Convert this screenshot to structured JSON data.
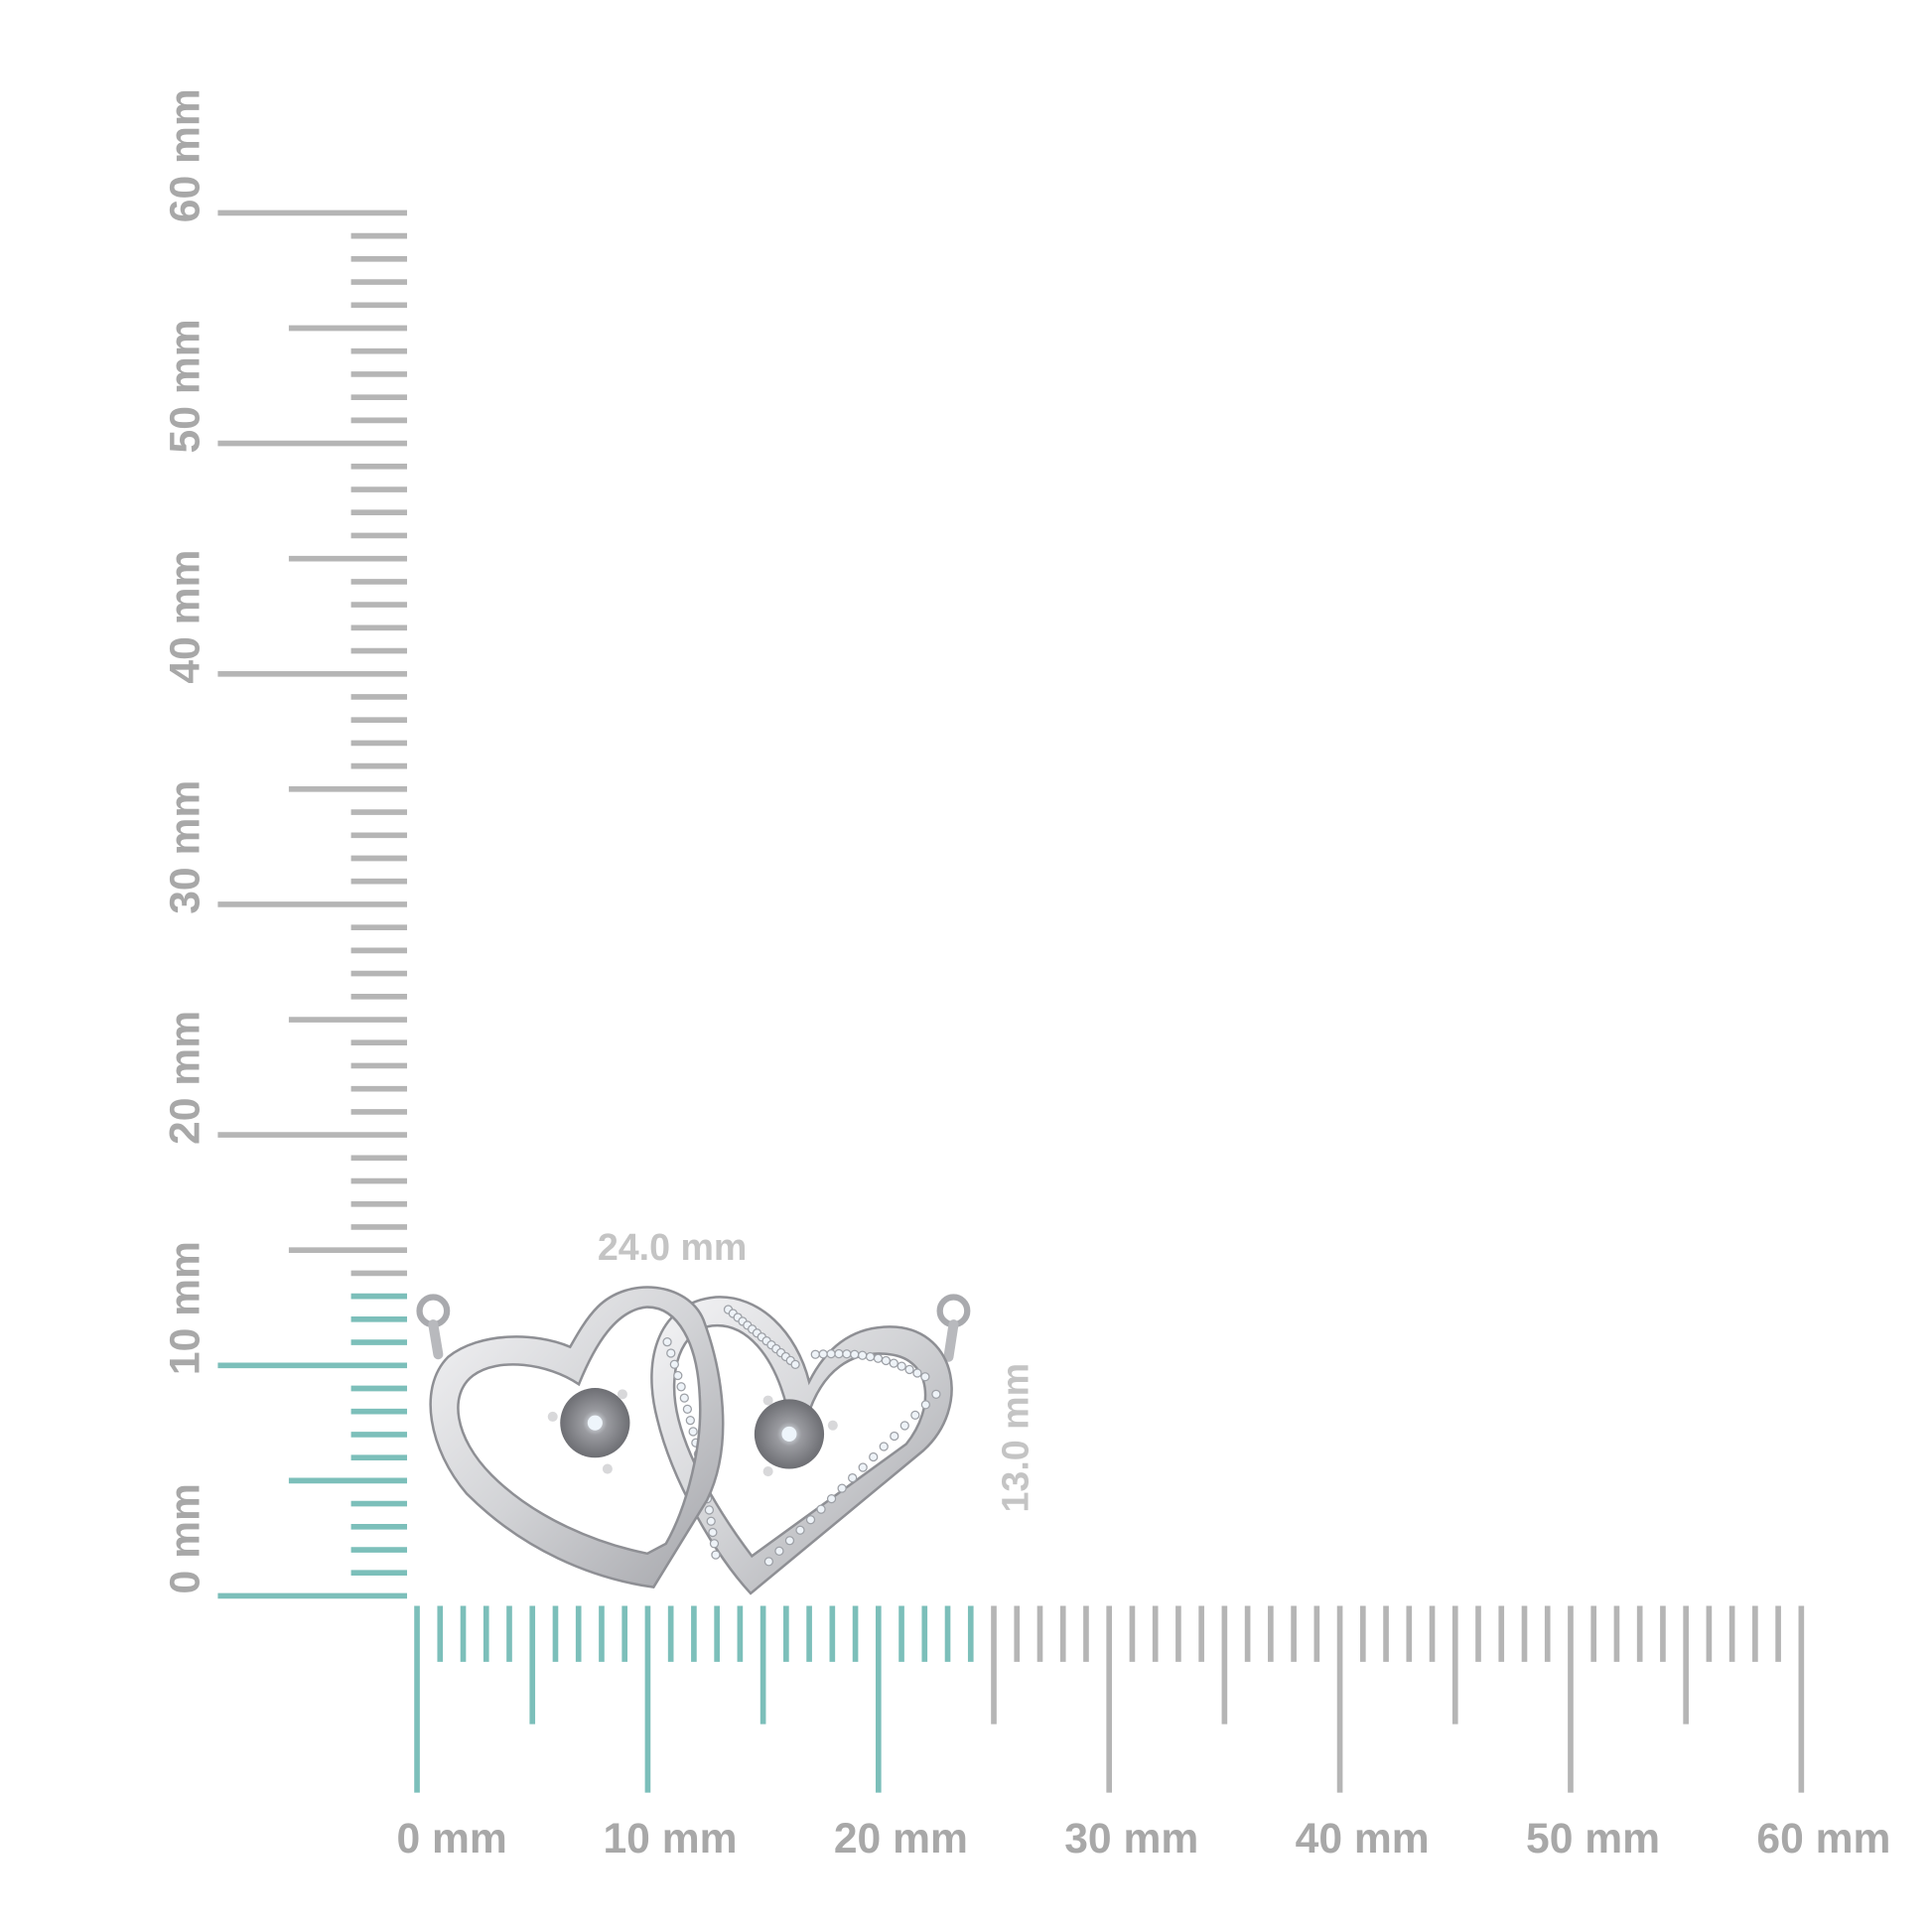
{
  "rulers": {
    "horizontal": {
      "labels": [
        "0 mm",
        "10 mm",
        "20 mm",
        "30 mm",
        "40 mm",
        "50 mm",
        "60 mm"
      ],
      "range_mm": [
        0,
        60
      ],
      "highlight_mm": 24
    },
    "vertical": {
      "labels": [
        "0 mm",
        "10 mm",
        "20 mm",
        "30 mm",
        "40 mm",
        "50 mm",
        "60 mm"
      ],
      "range_mm": [
        0,
        60
      ],
      "highlight_mm": 13
    }
  },
  "dimensions": {
    "width_label": "24.0 mm",
    "height_label": "13.0 mm"
  },
  "colors": {
    "highlight": "#7cbfba",
    "tick": "#b5b5b5",
    "label": "#a8a8a8",
    "metal": "#d9d9db",
    "metal_shadow": "#8f9095"
  },
  "product": {
    "type": "double-heart pendant necklace",
    "icon": "interlocking-hearts-icon"
  }
}
